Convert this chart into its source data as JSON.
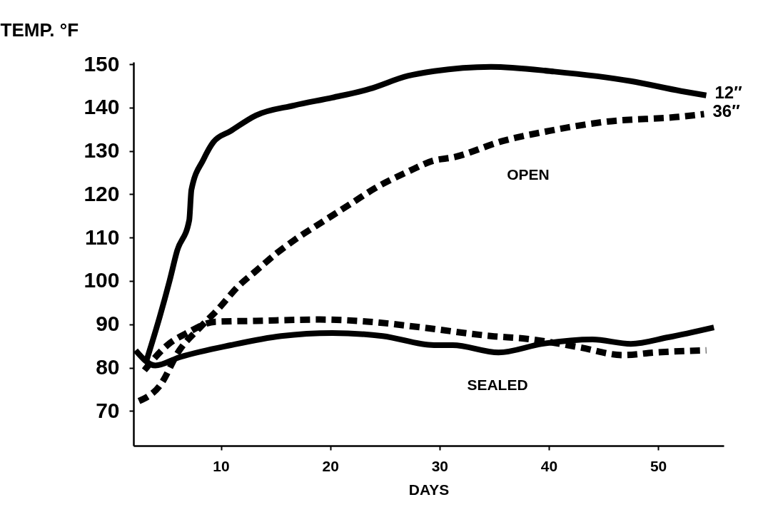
{
  "chart_data": {
    "type": "line",
    "ylabel": "TEMP. °F",
    "xlabel": "DAYS",
    "xlim": [
      2,
      56
    ],
    "xticks": [
      10,
      20,
      30,
      40,
      50
    ],
    "ylim": [
      62,
      150.5
    ],
    "yticks": [
      70,
      80,
      90,
      100,
      110,
      120,
      130,
      140,
      150
    ],
    "grid": false,
    "marker": "none",
    "annotations": [
      "OPEN",
      "SEALED"
    ],
    "series": [
      {
        "name": "12″",
        "color": "#000000",
        "line_style": "solid",
        "x": [
          3.2,
          4.4,
          5.3,
          6.0,
          7.1,
          7.3,
          8.4,
          9.3,
          10.9,
          13.2,
          16.7,
          20.2,
          23.6,
          27.1,
          29.5,
          34.7,
          40.5,
          47.5,
          52.1,
          54.4
        ],
        "values": [
          81.7,
          91.7,
          100,
          107,
          114,
          121,
          128,
          132,
          134.6,
          138.2,
          140.5,
          142.3,
          144.3,
          147.3,
          148.4,
          149.4,
          148.3,
          146.1,
          143.8,
          142.8
        ]
      },
      {
        "name": "36″",
        "color": "#000000",
        "line_style": "dashed",
        "x": [
          2.5,
          4.4,
          6.2,
          8.1,
          9.7,
          11.6,
          13.2,
          15.1,
          16.7,
          19.2,
          22,
          24.1,
          27.1,
          29.5,
          31.2,
          35.8,
          40,
          45.1,
          52.1,
          54.2
        ],
        "values": [
          72.3,
          75.8,
          84,
          89.3,
          93.4,
          98.8,
          102.3,
          106.4,
          109.4,
          113.5,
          118,
          121.4,
          125.2,
          127.8,
          128.5,
          132.3,
          134.6,
          136.7,
          137.9,
          138.5
        ]
      },
      {
        "color": "#000000",
        "line_style": "dashed",
        "x": [
          3,
          5.1,
          6.9,
          9.5,
          13.2,
          19,
          23.6,
          28.3,
          34.7,
          38.2,
          42.8,
          46.8,
          49.7,
          54.4
        ],
        "values": [
          79.4,
          85.2,
          88,
          90.6,
          90.8,
          91.1,
          90.6,
          89.3,
          87.3,
          86.6,
          84.7,
          82.9,
          83.5,
          84
        ]
      },
      {
        "color": "#000000",
        "line_style": "solid",
        "x": [
          2.2,
          4,
          6.2,
          10.9,
          15.5,
          20.2,
          24.8,
          29.5,
          31.2,
          35.4,
          39.4,
          44,
          47.5,
          50.9,
          55.1
        ],
        "values": [
          84,
          80.5,
          82.4,
          85.2,
          87.3,
          88,
          87.3,
          85.2,
          85.2,
          83.5,
          85.5,
          86.5,
          85.5,
          87,
          89.3
        ]
      }
    ]
  }
}
